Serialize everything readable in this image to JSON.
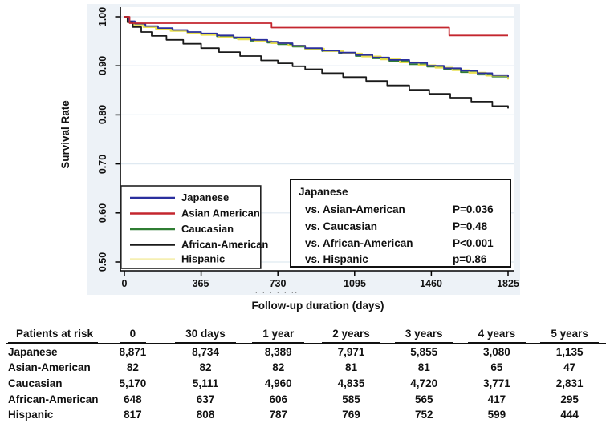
{
  "colors": {
    "japanese": "#2a2f9e",
    "asian_american": "#c4262e",
    "caucasian": "#2f7d33",
    "african_american": "#1a1a1a",
    "hispanic": "#e9e04f",
    "hispanic_legend": "#f5efb2",
    "panel_bg": "#edf2f7",
    "plot_bg": "#ffffff",
    "grid": "#dfe9f1",
    "axis": "#000000"
  },
  "chart_data": {
    "type": "line",
    "subtype": "kaplan-meier-survival",
    "title": "",
    "xlabel": "Follow-up duration (days)",
    "ylabel": "Survival Rate",
    "xlim": [
      0,
      1825
    ],
    "ylim": [
      0.5,
      1.0
    ],
    "xticks": [
      "0",
      "365",
      "730",
      "1095",
      "1460",
      "1825"
    ],
    "yticks": [
      "1.00",
      "0.90",
      "0.80",
      "0.70",
      "0.60",
      "0.50"
    ],
    "grid": true,
    "legend_position": "bottom-left",
    "series": [
      {
        "name": "Japanese",
        "color_key": "japanese",
        "points": [
          [
            0,
            1.0
          ],
          [
            20,
            0.991
          ],
          [
            50,
            0.986
          ],
          [
            100,
            0.981
          ],
          [
            160,
            0.977
          ],
          [
            230,
            0.973
          ],
          [
            300,
            0.969
          ],
          [
            365,
            0.966
          ],
          [
            440,
            0.962
          ],
          [
            520,
            0.958
          ],
          [
            600,
            0.953
          ],
          [
            680,
            0.949
          ],
          [
            730,
            0.946
          ],
          [
            800,
            0.941
          ],
          [
            860,
            0.936
          ],
          [
            940,
            0.931
          ],
          [
            1020,
            0.927
          ],
          [
            1100,
            0.922
          ],
          [
            1180,
            0.917
          ],
          [
            1260,
            0.912
          ],
          [
            1355,
            0.906
          ],
          [
            1440,
            0.9
          ],
          [
            1520,
            0.895
          ],
          [
            1600,
            0.89
          ],
          [
            1680,
            0.885
          ],
          [
            1750,
            0.881
          ],
          [
            1825,
            0.877
          ]
        ]
      },
      {
        "name": "Asian American",
        "color_key": "asian_american",
        "points": [
          [
            0,
            1.0
          ],
          [
            25,
            0.987
          ],
          [
            700,
            0.978
          ],
          [
            1545,
            0.962
          ],
          [
            1825,
            0.962
          ]
        ]
      },
      {
        "name": "Caucasian",
        "color_key": "caucasian",
        "points": [
          [
            0,
            1.0
          ],
          [
            20,
            0.99
          ],
          [
            50,
            0.985
          ],
          [
            100,
            0.98
          ],
          [
            160,
            0.976
          ],
          [
            230,
            0.972
          ],
          [
            300,
            0.968
          ],
          [
            365,
            0.964
          ],
          [
            440,
            0.96
          ],
          [
            520,
            0.956
          ],
          [
            600,
            0.951
          ],
          [
            680,
            0.947
          ],
          [
            730,
            0.944
          ],
          [
            800,
            0.939
          ],
          [
            860,
            0.934
          ],
          [
            940,
            0.93
          ],
          [
            1020,
            0.925
          ],
          [
            1100,
            0.92
          ],
          [
            1180,
            0.915
          ],
          [
            1260,
            0.91
          ],
          [
            1355,
            0.903
          ],
          [
            1440,
            0.898
          ],
          [
            1520,
            0.893
          ],
          [
            1600,
            0.887
          ],
          [
            1680,
            0.882
          ],
          [
            1750,
            0.878
          ],
          [
            1825,
            0.873
          ]
        ]
      },
      {
        "name": "African-American",
        "color_key": "african_american",
        "points": [
          [
            0,
            1.0
          ],
          [
            15,
            0.989
          ],
          [
            40,
            0.979
          ],
          [
            80,
            0.969
          ],
          [
            130,
            0.961
          ],
          [
            200,
            0.953
          ],
          [
            280,
            0.945
          ],
          [
            365,
            0.936
          ],
          [
            450,
            0.928
          ],
          [
            550,
            0.92
          ],
          [
            650,
            0.911
          ],
          [
            730,
            0.905
          ],
          [
            800,
            0.899
          ],
          [
            860,
            0.893
          ],
          [
            940,
            0.885
          ],
          [
            1040,
            0.877
          ],
          [
            1150,
            0.869
          ],
          [
            1250,
            0.86
          ],
          [
            1355,
            0.851
          ],
          [
            1450,
            0.843
          ],
          [
            1550,
            0.835
          ],
          [
            1650,
            0.827
          ],
          [
            1750,
            0.818
          ],
          [
            1825,
            0.813
          ]
        ]
      },
      {
        "name": "Hispanic",
        "color_key": "hispanic",
        "legend_color_key": "hispanic_legend",
        "points": [
          [
            0,
            1.0
          ],
          [
            15,
            0.989
          ],
          [
            40,
            0.984
          ],
          [
            90,
            0.979
          ],
          [
            150,
            0.975
          ],
          [
            220,
            0.971
          ],
          [
            300,
            0.967
          ],
          [
            365,
            0.963
          ],
          [
            450,
            0.958
          ],
          [
            540,
            0.954
          ],
          [
            620,
            0.95
          ],
          [
            700,
            0.946
          ],
          [
            780,
            0.941
          ],
          [
            860,
            0.935
          ],
          [
            950,
            0.93
          ],
          [
            1040,
            0.925
          ],
          [
            1130,
            0.919
          ],
          [
            1220,
            0.913
          ],
          [
            1310,
            0.907
          ],
          [
            1400,
            0.901
          ],
          [
            1480,
            0.896
          ],
          [
            1560,
            0.891
          ],
          [
            1640,
            0.886
          ],
          [
            1720,
            0.88
          ],
          [
            1825,
            0.872
          ]
        ]
      }
    ]
  },
  "pvalue_box": {
    "title": "Japanese",
    "rows": [
      {
        "label": "vs. Asian-American",
        "value": "P=0.036"
      },
      {
        "label": "vs. Caucasian",
        "value": "P=0.48"
      },
      {
        "label": "vs. African-American",
        "value": "P<0.001"
      },
      {
        "label": "vs. Hispanic",
        "value": "p=0.86"
      }
    ]
  },
  "misc": {
    "artifact_dots": ". . . . . .."
  },
  "risk_table": {
    "header": [
      "Patients at risk",
      "0",
      "30 days",
      "1 year",
      "2 years",
      "3 years",
      "4 years",
      "5 years"
    ],
    "rows": [
      {
        "label": "Japanese",
        "values": [
          "8,871",
          "8,734",
          "8,389",
          "7,971",
          "5,855",
          "3,080",
          "1,135"
        ]
      },
      {
        "label": "Asian-American",
        "values": [
          "82",
          "82",
          "82",
          "81",
          "81",
          "65",
          "47"
        ]
      },
      {
        "label": "Caucasian",
        "values": [
          "5,170",
          "5,111",
          "4,960",
          "4,835",
          "4,720",
          "3,771",
          "2,831"
        ]
      },
      {
        "label": "African-American",
        "values": [
          "648",
          "637",
          "606",
          "585",
          "565",
          "417",
          "295"
        ]
      },
      {
        "label": "Hispanic",
        "values": [
          "817",
          "808",
          "787",
          "769",
          "752",
          "599",
          "444"
        ]
      }
    ]
  }
}
